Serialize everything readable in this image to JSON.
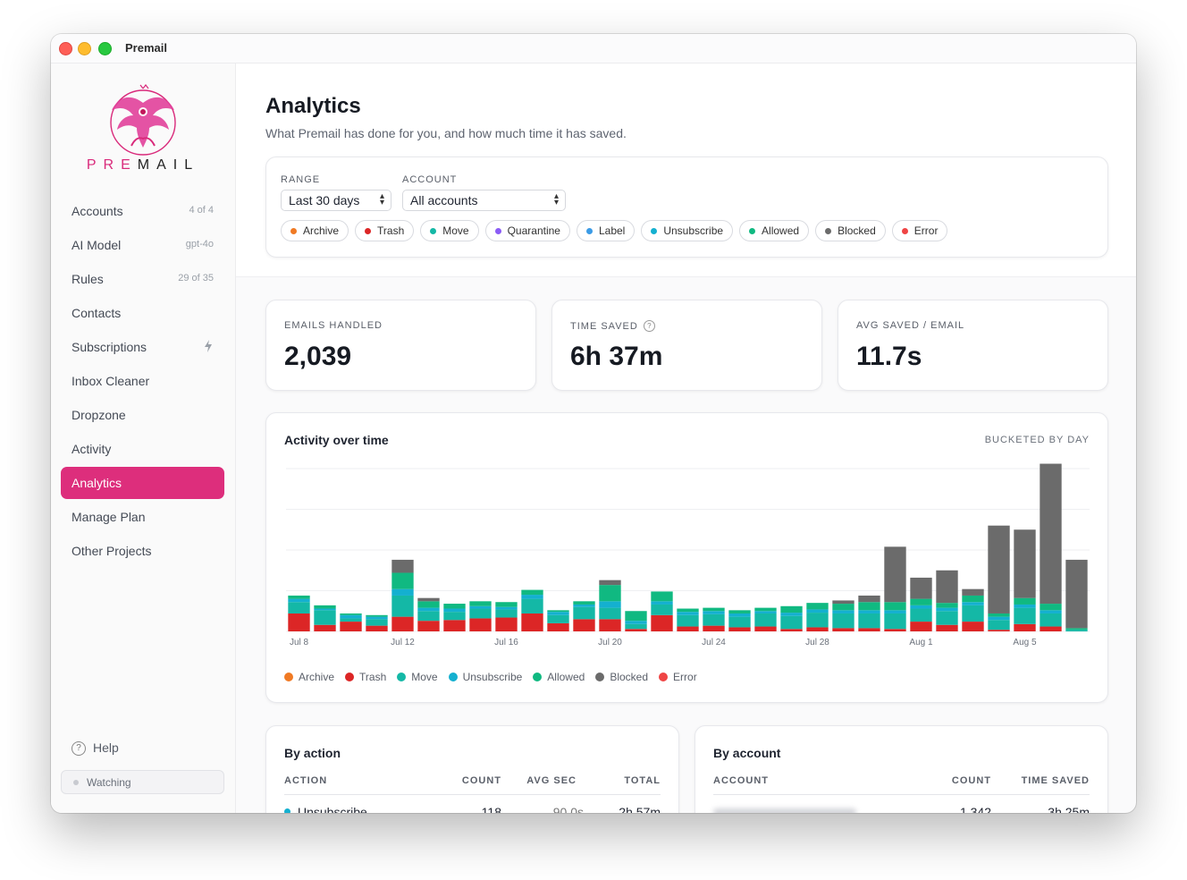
{
  "window": {
    "title": "Premail"
  },
  "brand": {
    "name_start": "PRE",
    "name_end": "MAIL"
  },
  "sidebar": {
    "items": [
      {
        "label": "Accounts",
        "meta": "4 of 4"
      },
      {
        "label": "AI Model",
        "meta": "gpt-4o"
      },
      {
        "label": "Rules",
        "meta": "29 of 35"
      },
      {
        "label": "Contacts",
        "meta": ""
      },
      {
        "label": "Subscriptions",
        "meta": ""
      },
      {
        "label": "Inbox Cleaner",
        "meta": ""
      },
      {
        "label": "Dropzone",
        "meta": ""
      },
      {
        "label": "Activity",
        "meta": ""
      },
      {
        "label": "Analytics",
        "meta": "",
        "active": true
      },
      {
        "label": "Manage Plan",
        "meta": ""
      },
      {
        "label": "Other Projects",
        "meta": ""
      }
    ],
    "help_label": "Help",
    "status_label": "Watching"
  },
  "page": {
    "title": "Analytics",
    "subtitle": "What Premail has done for you, and how much time it has saved."
  },
  "filters": {
    "range_label": "RANGE",
    "range_value": "Last 30 days",
    "account_label": "ACCOUNT",
    "account_value": "All accounts",
    "chips": [
      {
        "label": "Archive",
        "color": "#f07a24"
      },
      {
        "label": "Trash",
        "color": "#dc2626"
      },
      {
        "label": "Move",
        "color": "#14b8a6"
      },
      {
        "label": "Quarantine",
        "color": "#8b5cf6"
      },
      {
        "label": "Label",
        "color": "#3b9be6"
      },
      {
        "label": "Unsubscribe",
        "color": "#14b0d0"
      },
      {
        "label": "Allowed",
        "color": "#10b981"
      },
      {
        "label": "Blocked",
        "color": "#6b6b6b"
      },
      {
        "label": "Error",
        "color": "#ef4444"
      }
    ]
  },
  "stats": [
    {
      "label": "EMAILS HANDLED",
      "value": "2,039"
    },
    {
      "label": "TIME SAVED",
      "value": "6h 37m",
      "help": "?"
    },
    {
      "label": "AVG SAVED / EMAIL",
      "value": "11.7s"
    }
  ],
  "activity": {
    "title": "Activity over time",
    "bucket_label": "BUCKETED BY DAY"
  },
  "chart_data": {
    "type": "bar",
    "stacked": true,
    "title": "Activity over time",
    "categories": [
      "Jul 8",
      "Jul 9",
      "Jul 10",
      "Jul 11",
      "Jul 12",
      "Jul 13",
      "Jul 14",
      "Jul 15",
      "Jul 16",
      "Jul 17",
      "Jul 18",
      "Jul 19",
      "Jul 20",
      "Jul 21",
      "Jul 22",
      "Jul 23",
      "Jul 24",
      "Jul 25",
      "Jul 26",
      "Jul 27",
      "Jul 28",
      "Jul 29",
      "Jul 30",
      "Jul 31",
      "Aug 1",
      "Aug 2",
      "Aug 3",
      "Aug 4",
      "Aug 5",
      "Aug 6",
      "Aug 7"
    ],
    "tick_labels": [
      "Jul 8",
      "Jul 12",
      "Jul 16",
      "Jul 20",
      "Jul 24",
      "Jul 28",
      "Aug 1",
      "Aug 5"
    ],
    "series": [
      {
        "name": "Archive",
        "color": "#f07a24",
        "values": [
          0,
          0,
          0,
          0,
          0,
          0,
          0,
          0,
          0,
          0,
          0,
          0,
          0,
          0,
          0,
          0,
          0,
          0,
          0,
          0,
          0,
          0,
          0,
          0,
          0,
          0,
          0,
          0,
          0,
          0,
          0
        ]
      },
      {
        "name": "Trash",
        "color": "#dc2626",
        "values": [
          22,
          8,
          12,
          7,
          18,
          13,
          14,
          16,
          17,
          22,
          10,
          15,
          15,
          3,
          20,
          6,
          7,
          5,
          6,
          3,
          5,
          4,
          4,
          3,
          12,
          8,
          12,
          2,
          9,
          6,
          0
        ]
      },
      {
        "name": "Move",
        "color": "#14b8a6",
        "values": [
          14,
          18,
          4,
          8,
          26,
          12,
          10,
          12,
          10,
          18,
          10,
          15,
          14,
          6,
          13,
          14,
          14,
          13,
          16,
          16,
          18,
          18,
          18,
          19,
          16,
          17,
          20,
          12,
          20,
          16,
          2
        ]
      },
      {
        "name": "Unsubscribe",
        "color": "#14b0d0",
        "values": [
          4,
          2,
          4,
          3,
          8,
          4,
          4,
          3,
          3,
          5,
          4,
          3,
          8,
          4,
          4,
          4,
          4,
          4,
          3,
          4,
          4,
          4,
          4,
          4,
          4,
          4,
          4,
          4,
          4,
          4,
          0
        ]
      },
      {
        "name": "Allowed",
        "color": "#10b981",
        "values": [
          4,
          4,
          2,
          2,
          20,
          8,
          6,
          6,
          6,
          6,
          2,
          4,
          20,
          12,
          12,
          4,
          4,
          4,
          4,
          8,
          8,
          8,
          10,
          10,
          8,
          6,
          8,
          4,
          8,
          8,
          2
        ]
      },
      {
        "name": "Blocked",
        "color": "#6b6b6b",
        "values": [
          0,
          0,
          0,
          0,
          16,
          4,
          0,
          0,
          0,
          0,
          0,
          0,
          6,
          0,
          0,
          0,
          0,
          0,
          0,
          0,
          0,
          4,
          8,
          68,
          26,
          40,
          8,
          108,
          84,
          172,
          84
        ]
      },
      {
        "name": "Error",
        "color": "#ef4444",
        "values": [
          0,
          0,
          0,
          0,
          0,
          0,
          0,
          0,
          0,
          0,
          0,
          0,
          0,
          0,
          0,
          0,
          0,
          0,
          0,
          0,
          0,
          0,
          0,
          0,
          0,
          0,
          0,
          0,
          0,
          0,
          0
        ]
      }
    ],
    "legend": [
      "Archive",
      "Trash",
      "Move",
      "Unsubscribe",
      "Allowed",
      "Blocked",
      "Error"
    ],
    "ylim": [
      0,
      200
    ],
    "grid": true,
    "xlabel": "",
    "ylabel": ""
  },
  "by_action": {
    "title": "By action",
    "headers": {
      "action": "ACTION",
      "count": "COUNT",
      "avg": "AVG SEC",
      "total": "TOTAL"
    },
    "rows": [
      {
        "action": "Unsubscribe",
        "count": "118",
        "avg": "90.0s",
        "total": "2h 57m",
        "color": "#14b0d0"
      }
    ]
  },
  "by_account": {
    "title": "By account",
    "headers": {
      "account": "ACCOUNT",
      "count": "COUNT",
      "saved": "TIME SAVED"
    },
    "rows": [
      {
        "count": "1,342",
        "saved": "3h 25m"
      }
    ]
  }
}
